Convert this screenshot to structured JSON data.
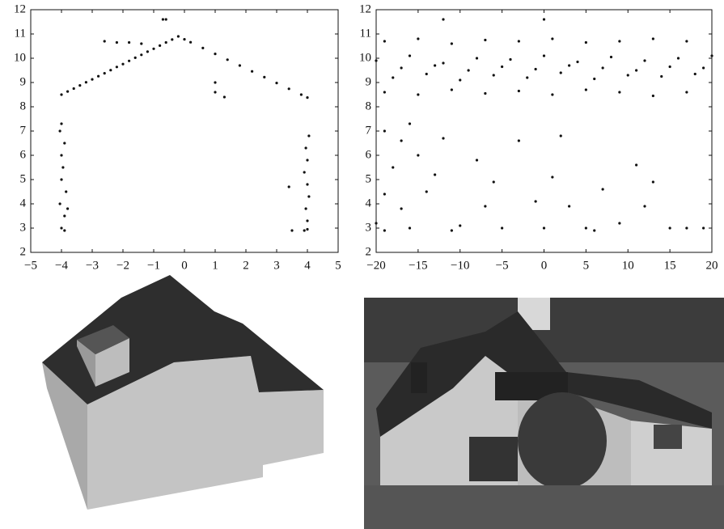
{
  "chart_data": [
    {
      "type": "scatter",
      "x": [
        -4,
        -3.8,
        -3.6,
        -3.4,
        -3.2,
        -3,
        -2.8,
        -2.6,
        -2.4,
        -2.2,
        -2,
        -1.8,
        -1.6,
        -1.4,
        -1.2,
        -1,
        -0.8,
        -0.6,
        -0.4,
        -0.2,
        0,
        0.2,
        0.6,
        1,
        1.4,
        1.8,
        2.2,
        2.6,
        3,
        3.4,
        3.8,
        4,
        -4,
        -3.9,
        -4.05,
        -3.85,
        -4,
        -3.95,
        -4,
        -3.9,
        -4.05,
        -4,
        -3.9,
        -3.8,
        3.9,
        4,
        3.95,
        4.05,
        4,
        3.9,
        4,
        3.95,
        4.05,
        4,
        -2.6,
        -2.2,
        -1.8,
        -1.4,
        -0.7,
        -0.6,
        1,
        1.3,
        1,
        3.5,
        3.4
      ],
      "y": [
        8.5,
        8.63,
        8.75,
        8.88,
        9.01,
        9.13,
        9.26,
        9.38,
        9.51,
        9.64,
        9.76,
        9.89,
        10.02,
        10.14,
        10.27,
        10.39,
        10.52,
        10.65,
        10.77,
        10.9,
        10.78,
        10.66,
        10.42,
        10.18,
        9.94,
        9.7,
        9.46,
        9.22,
        8.98,
        8.74,
        8.5,
        8.38,
        3,
        3.5,
        4,
        4.5,
        5,
        5.5,
        6,
        6.5,
        7,
        7.3,
        2.9,
        3.8,
        2.9,
        3.3,
        3.8,
        4.3,
        4.8,
        5.3,
        5.8,
        6.3,
        6.8,
        2.95,
        10.7,
        10.65,
        10.65,
        10.6,
        11.6,
        11.6,
        9,
        8.4,
        8.6,
        2.9,
        4.7
      ],
      "xlim": [
        -5,
        5
      ],
      "ylim": [
        2,
        12
      ],
      "xticks": [
        {
          "value": -5,
          "label": "−5"
        },
        {
          "value": -4,
          "label": "−4"
        },
        {
          "value": -3,
          "label": "−3"
        },
        {
          "value": -2,
          "label": "−2"
        },
        {
          "value": -1,
          "label": "−1"
        },
        0,
        1,
        2,
        3,
        4,
        5
      ],
      "yticks": [
        2,
        3,
        4,
        5,
        6,
        7,
        8,
        9,
        10,
        11,
        12
      ],
      "color": "#111111"
    },
    {
      "type": "scatter",
      "x": [
        -19,
        -15,
        -11,
        -7,
        -3,
        1,
        5,
        9,
        13,
        17,
        -20,
        -16,
        -12,
        -8,
        -4,
        0,
        4,
        8,
        12,
        16,
        20,
        -18,
        -14,
        -10,
        -6,
        -2,
        2,
        6,
        10,
        14,
        18,
        -19,
        -15,
        -11,
        -7,
        -3,
        1,
        5,
        9,
        13,
        17,
        -17,
        -13,
        -9,
        -5,
        -1,
        3,
        7,
        11,
        15,
        19,
        -19,
        -17,
        -16,
        -18,
        -15,
        -13,
        -19,
        -17,
        -20,
        -16,
        -14,
        -12,
        -10,
        -8,
        -6,
        -5,
        -3,
        -1,
        0,
        2,
        3,
        5,
        7,
        9,
        11,
        12,
        13,
        15,
        17,
        19,
        -11,
        -7,
        1,
        6,
        -19,
        -12,
        0
      ],
      "y": [
        10.7,
        10.8,
        10.6,
        10.75,
        10.7,
        10.8,
        10.65,
        10.7,
        10.8,
        10.7,
        9.9,
        10.1,
        9.8,
        10,
        9.95,
        10.1,
        9.85,
        10.05,
        9.9,
        10,
        10.1,
        9.2,
        9.35,
        9.1,
        9.3,
        9.2,
        9.4,
        9.15,
        9.3,
        9.25,
        9.35,
        8.6,
        8.5,
        8.7,
        8.55,
        8.65,
        8.5,
        8.7,
        8.6,
        8.45,
        8.6,
        9.6,
        9.7,
        9.5,
        9.65,
        9.55,
        9.7,
        9.6,
        9.5,
        9.65,
        9.6,
        7,
        6.6,
        7.3,
        5.5,
        6,
        5.2,
        4.4,
        3.8,
        3.2,
        3,
        4.5,
        6.7,
        3.1,
        5.8,
        4.9,
        3,
        6.6,
        4.1,
        3,
        6.8,
        3.9,
        3,
        4.6,
        3.2,
        5.6,
        3.9,
        4.9,
        3,
        3,
        3,
        2.9,
        3.9,
        5.1,
        2.9,
        2.9,
        11.6,
        11.6
      ],
      "xlim": [
        -20,
        20
      ],
      "ylim": [
        2,
        12
      ],
      "xticks": [
        {
          "value": -20,
          "label": "−20"
        },
        {
          "value": -15,
          "label": "−15"
        },
        {
          "value": -10,
          "label": "−10"
        },
        {
          "value": -5,
          "label": "−5"
        },
        0,
        5,
        10,
        15,
        20
      ],
      "yticks": [
        2,
        3,
        4,
        5,
        6,
        7,
        8,
        9,
        10,
        11,
        12
      ],
      "color": "#111111"
    }
  ]
}
